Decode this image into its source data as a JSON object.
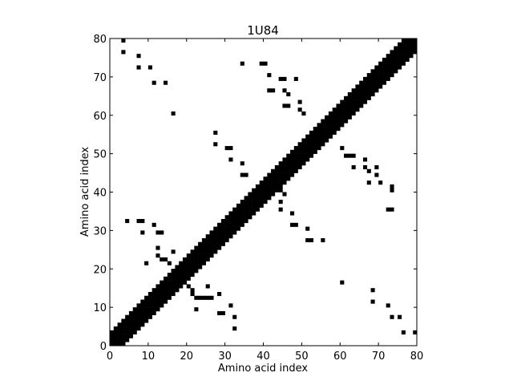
{
  "chart_data": {
    "type": "heatmap",
    "title": "1U84",
    "xlabel": "Amino acid index",
    "ylabel": "Amino acid index",
    "xlim": [
      0,
      80
    ],
    "ylim": [
      0,
      80
    ],
    "xticks": [
      "0",
      "10",
      "20",
      "30",
      "40",
      "50",
      "60",
      "70",
      "80"
    ],
    "yticks": [
      "0",
      "10",
      "20",
      "30",
      "40",
      "50",
      "60",
      "70",
      "80"
    ],
    "grid": false,
    "colormap": {
      "0": "#ffffff",
      "1": "#000000"
    },
    "diagonal_band_halfwidth": 3,
    "contacts": [
      [
        3,
        79
      ],
      [
        3,
        76
      ],
      [
        7,
        75
      ],
      [
        7,
        72
      ],
      [
        10,
        72
      ],
      [
        11,
        68
      ],
      [
        14,
        68
      ],
      [
        16,
        60
      ],
      [
        34,
        73
      ],
      [
        39,
        73
      ],
      [
        40,
        73
      ],
      [
        41,
        70
      ],
      [
        41,
        66
      ],
      [
        42,
        66
      ],
      [
        44,
        69
      ],
      [
        45,
        69
      ],
      [
        45,
        66
      ],
      [
        46,
        65
      ],
      [
        45,
        62
      ],
      [
        46,
        62
      ],
      [
        48,
        69
      ],
      [
        49,
        63
      ],
      [
        49,
        61
      ],
      [
        50,
        60
      ],
      [
        27,
        55
      ],
      [
        27,
        52
      ],
      [
        30,
        51
      ],
      [
        31,
        51
      ],
      [
        31,
        48
      ],
      [
        34,
        47
      ],
      [
        34,
        44
      ],
      [
        35,
        44
      ],
      [
        61,
        49
      ],
      [
        62,
        49
      ],
      [
        63,
        49
      ],
      [
        60,
        51
      ],
      [
        63,
        46
      ],
      [
        66,
        48
      ],
      [
        66,
        46
      ],
      [
        67,
        45
      ],
      [
        69,
        46
      ],
      [
        69,
        44
      ],
      [
        67,
        42
      ],
      [
        70,
        42
      ],
      [
        73,
        41
      ],
      [
        73,
        40
      ],
      [
        72,
        35
      ],
      [
        73,
        35
      ],
      [
        44,
        37
      ],
      [
        44,
        35
      ],
      [
        47,
        34
      ],
      [
        47,
        31
      ],
      [
        48,
        31
      ],
      [
        51,
        30
      ],
      [
        51,
        27
      ],
      [
        52,
        27
      ],
      [
        55,
        27
      ],
      [
        44,
        40
      ],
      [
        45,
        39
      ],
      [
        40,
        43
      ],
      [
        41,
        43
      ],
      [
        42,
        44
      ],
      [
        4,
        32
      ],
      [
        7,
        32
      ],
      [
        8,
        32
      ],
      [
        8,
        29
      ],
      [
        11,
        31
      ],
      [
        12,
        29
      ],
      [
        13,
        29
      ],
      [
        9,
        21
      ],
      [
        12,
        25
      ],
      [
        12,
        23
      ],
      [
        13,
        22
      ],
      [
        14,
        22
      ],
      [
        15,
        21
      ],
      [
        16,
        24
      ],
      [
        16,
        19
      ],
      [
        17,
        18
      ],
      [
        18,
        17
      ],
      [
        19,
        16
      ],
      [
        20,
        15
      ],
      [
        21,
        14
      ],
      [
        21,
        13
      ],
      [
        22,
        12
      ],
      [
        23,
        12
      ],
      [
        24,
        12
      ],
      [
        25,
        12
      ],
      [
        26,
        12
      ],
      [
        22,
        9
      ],
      [
        25,
        15
      ],
      [
        28,
        13
      ],
      [
        28,
        8
      ],
      [
        29,
        8
      ],
      [
        31,
        10
      ],
      [
        32,
        7
      ],
      [
        32,
        4
      ],
      [
        60,
        16
      ],
      [
        68,
        14
      ],
      [
        68,
        11
      ],
      [
        72,
        10
      ],
      [
        73,
        7
      ],
      [
        75,
        7
      ],
      [
        76,
        3
      ],
      [
        79,
        3
      ]
    ]
  }
}
